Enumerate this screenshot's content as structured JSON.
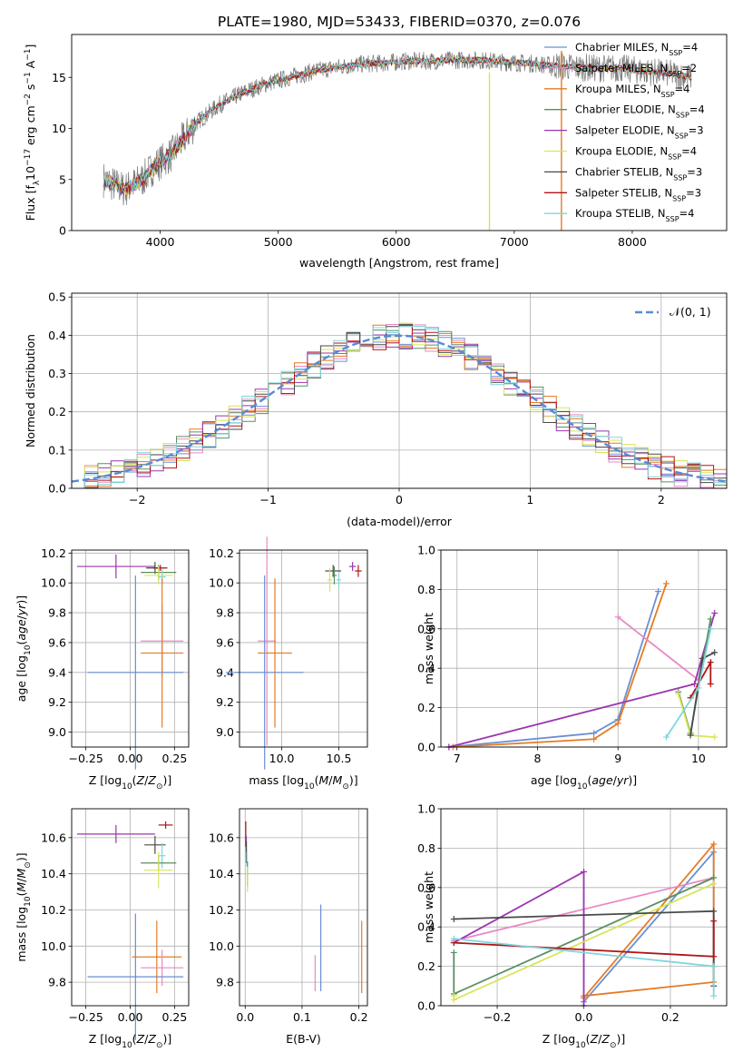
{
  "figure": {
    "suptitle": "PLATE=1980, MJD=53433, FIBERID=0370, z=0.076"
  },
  "series_colors": {
    "Chabrier MILES": "#6a8fd4",
    "Salpeter MILES": "#e78ac3",
    "Kroupa MILES": "#e57b25",
    "Chabrier ELODIE": "#5b8f5f",
    "Salpeter ELODIE": "#9b35b0",
    "Kroupa ELODIE": "#d9e45a",
    "Chabrier STELIB": "#4a4a4a",
    "Salpeter STELIB": "#b01515",
    "Kroupa STELIB": "#7fd6de"
  },
  "chart_data": [
    {
      "id": "spectrum",
      "type": "line",
      "xlabel": "wavelength [Angstrom, rest frame]",
      "ylabel": "Flux [f_λ10^-17 erg cm^-2 s^-1 A^-1]",
      "xlim": [
        3250,
        8800
      ],
      "ylim": [
        0,
        19.2
      ],
      "xticks": [
        "4000",
        "5000",
        "6000",
        "7000",
        "8000"
      ],
      "yticks": [
        "0",
        "5",
        "10",
        "15"
      ],
      "grid": false,
      "legend_position": "right",
      "legend": [
        {
          "series": "Chabrier MILES",
          "pre": "Chabrier MILES, N",
          "sub": "SSP",
          "post": "=4"
        },
        {
          "series": "Salpeter MILES",
          "pre": "Salpeter MILES, N",
          "sub": "SSP",
          "post": "=2"
        },
        {
          "series": "Kroupa MILES",
          "pre": "Kroupa MILES, N",
          "sub": "SSP",
          "post": "=4"
        },
        {
          "series": "Chabrier ELODIE",
          "pre": "Chabrier ELODIE, N",
          "sub": "SSP",
          "post": "=4"
        },
        {
          "series": "Salpeter ELODIE",
          "pre": "Salpeter ELODIE, N",
          "sub": "SSP",
          "post": "=3"
        },
        {
          "series": "Kroupa ELODIE",
          "pre": "Kroupa ELODIE, N",
          "sub": "SSP",
          "post": "=4"
        },
        {
          "series": "Chabrier STELIB",
          "pre": "Chabrier STELIB, N",
          "sub": "SSP",
          "post": "=3"
        },
        {
          "series": "Salpeter STELIB",
          "pre": "Salpeter STELIB, N",
          "sub": "SSP",
          "post": "=3"
        },
        {
          "series": "Kroupa STELIB",
          "pre": "Kroupa STELIB, N",
          "sub": "SSP",
          "post": "=4"
        }
      ],
      "continuum": {
        "x": [
          3520,
          3700,
          3850,
          3950,
          4100,
          4300,
          4500,
          4700,
          4900,
          5100,
          5300,
          5500,
          5700,
          5900,
          6100,
          6300,
          6500,
          6700,
          6900,
          7100,
          7300,
          7500,
          7700,
          7900,
          8100,
          8300,
          8500
        ],
        "y": [
          5.0,
          4.0,
          5.0,
          6.3,
          7.5,
          10.5,
          12.3,
          13.5,
          14.4,
          15.0,
          15.6,
          16.0,
          16.3,
          16.4,
          16.6,
          16.6,
          16.7,
          16.7,
          16.5,
          16.4,
          16.2,
          16.0,
          15.9,
          15.9,
          15.6,
          15.4,
          15.0
        ]
      }
    },
    {
      "id": "residuals",
      "type": "histogram",
      "xlabel": "(data-model)/error",
      "ylabel": "Normed distribution",
      "xlim": [
        -2.5,
        2.5
      ],
      "ylim": [
        0,
        0.51
      ],
      "xticks": [
        "−2",
        "−1",
        "0",
        "1",
        "2"
      ],
      "yticks": [
        "0.0",
        "0.1",
        "0.2",
        "0.3",
        "0.4",
        "0.5"
      ],
      "grid": true,
      "legend_label": "𝒩(0, 1)",
      "reference_curve": "standard normal N(0,1)",
      "bin_width": 0.1
    },
    {
      "id": "age_vs_Z",
      "type": "scatter",
      "xlabel": "Z [log10(Z/Z⊙)]",
      "ylabel": "age  [log10(age/yr)]",
      "xlim": [
        -0.33,
        0.33
      ],
      "ylim": [
        8.9,
        10.22
      ],
      "xticks": [
        "−0.25",
        "0.00",
        "0.25"
      ],
      "yticks": [
        "9.0",
        "9.2",
        "9.4",
        "9.6",
        "9.8",
        "10.0",
        "10.2"
      ],
      "grid": true,
      "points": [
        {
          "series": "Salpeter ELODIE",
          "x": -0.08,
          "y": 10.11,
          "xerr": 0.22,
          "yerr": 0.08
        },
        {
          "series": "Chabrier STELIB",
          "x": 0.14,
          "y": 10.1,
          "xerr": 0.05,
          "yerr": 0.04
        },
        {
          "series": "Salpeter STELIB",
          "x": 0.17,
          "y": 10.1,
          "xerr": 0.04,
          "yerr": 0.02
        },
        {
          "series": "Chabrier ELODIE",
          "x": 0.16,
          "y": 10.07,
          "xerr": 0.1,
          "yerr": 0.05
        },
        {
          "series": "Kroupa ELODIE",
          "x": 0.16,
          "y": 10.05,
          "xerr": 0.08,
          "yerr": 0.06
        },
        {
          "series": "Kroupa STELIB",
          "x": 0.18,
          "y": 10.04,
          "xerr": 0.02,
          "yerr": 0.06
        },
        {
          "series": "Salpeter MILES",
          "x": 0.18,
          "y": 9.61,
          "xerr": 0.12,
          "yerr": 0.24
        },
        {
          "series": "Kroupa MILES",
          "x": 0.18,
          "y": 9.53,
          "xerr": 0.12,
          "yerr": 0.5
        },
        {
          "series": "Chabrier MILES",
          "x": 0.03,
          "y": 9.4,
          "xerr": 0.27,
          "yerr": 0.65
        }
      ]
    },
    {
      "id": "age_vs_mass",
      "type": "scatter",
      "xlabel": "mass [log10(M/M⊙)]",
      "ylabel": "",
      "xlim": [
        9.63,
        10.75
      ],
      "ylim": [
        8.9,
        10.22
      ],
      "xticks": [
        "10.0",
        "10.5"
      ],
      "yticks": [
        "9.0",
        "9.2",
        "9.4",
        "9.6",
        "9.8",
        "10.0",
        "10.2"
      ],
      "grid": true,
      "points": [
        {
          "series": "Salpeter ELODIE",
          "x": 10.62,
          "y": 10.11,
          "xerr": 0.03,
          "yerr": 0.03
        },
        {
          "series": "Chabrier STELIB",
          "x": 10.45,
          "y": 10.08,
          "xerr": 0.07,
          "yerr": 0.04
        },
        {
          "series": "Salpeter STELIB",
          "x": 10.67,
          "y": 10.08,
          "xerr": 0.03,
          "yerr": 0.04
        },
        {
          "series": "Chabrier ELODIE",
          "x": 10.46,
          "y": 10.05,
          "xerr": 0.02,
          "yerr": 0.06
        },
        {
          "series": "Kroupa ELODIE",
          "x": 10.42,
          "y": 10.02,
          "xerr": 0.02,
          "yerr": 0.08
        },
        {
          "series": "Kroupa STELIB",
          "x": 10.5,
          "y": 10.02,
          "xerr": 0.02,
          "yerr": 0.05
        },
        {
          "series": "Salpeter MILES",
          "x": 9.87,
          "y": 9.61,
          "xerr": 0.08,
          "yerr": 0.7
        },
        {
          "series": "Kroupa MILES",
          "x": 9.94,
          "y": 9.53,
          "xerr": 0.15,
          "yerr": 0.5
        },
        {
          "series": "Chabrier MILES",
          "x": 9.85,
          "y": 9.4,
          "xerr": 0.34,
          "yerr": 0.65
        }
      ]
    },
    {
      "id": "massweight_vs_age",
      "type": "line",
      "xlabel": "age  [log10(age/yr)]",
      "ylabel": "mass weight",
      "xlim": [
        6.8,
        10.35
      ],
      "ylim": [
        0,
        1.0
      ],
      "xticks": [
        "7",
        "8",
        "9",
        "10"
      ],
      "yticks": [
        "0.0",
        "0.2",
        "0.4",
        "0.6",
        "0.8",
        "1.0"
      ],
      "grid": true,
      "series": [
        {
          "name": "Chabrier MILES",
          "x": [
            6.9,
            8.7,
            9.0,
            9.5
          ],
          "y": [
            0.0,
            0.07,
            0.14,
            0.79
          ]
        },
        {
          "name": "Kroupa MILES",
          "x": [
            6.95,
            8.7,
            9.0,
            9.6
          ],
          "y": [
            0.0,
            0.04,
            0.12,
            0.83
          ]
        },
        {
          "name": "Salpeter MILES",
          "x": [
            9.0,
            10.0
          ],
          "y": [
            0.66,
            0.34
          ]
        },
        {
          "name": "Salpeter ELODIE",
          "x": [
            6.9,
            9.95,
            10.2
          ],
          "y": [
            0.0,
            0.32,
            0.68
          ]
        },
        {
          "name": "Chabrier ELODIE",
          "x": [
            9.75,
            9.9,
            10.15
          ],
          "y": [
            0.28,
            0.07,
            0.65
          ]
        },
        {
          "name": "Kroupa ELODIE",
          "x": [
            9.75,
            9.9,
            10.2
          ],
          "y": [
            0.27,
            0.06,
            0.05
          ]
        },
        {
          "name": "Chabrier STELIB",
          "x": [
            9.9,
            10.05,
            10.2
          ],
          "y": [
            0.06,
            0.45,
            0.48
          ]
        },
        {
          "name": "Salpeter STELIB",
          "x": [
            9.9,
            10.15,
            10.15
          ],
          "y": [
            0.25,
            0.43,
            0.32
          ]
        },
        {
          "name": "Kroupa STELIB",
          "x": [
            9.6,
            10.0,
            10.15
          ],
          "y": [
            0.05,
            0.3,
            0.6
          ]
        }
      ]
    },
    {
      "id": "mass_vs_Z",
      "type": "scatter",
      "xlabel": "Z [log10(Z/Z⊙)]",
      "ylabel": "mass [log10(M/M⊙)]",
      "xlim": [
        -0.33,
        0.33
      ],
      "ylim": [
        9.67,
        10.76
      ],
      "xticks": [
        "−0.25",
        "0.00",
        "0.25"
      ],
      "yticks": [
        "9.8",
        "10.0",
        "10.2",
        "10.4",
        "10.6"
      ],
      "grid": true,
      "points": [
        {
          "series": "Salpeter STELIB",
          "x": 0.2,
          "y": 10.67,
          "xerr": 0.04,
          "yerr": 0.02
        },
        {
          "series": "Salpeter ELODIE",
          "x": -0.08,
          "y": 10.62,
          "xerr": 0.22,
          "yerr": 0.05
        },
        {
          "series": "Chabrier STELIB",
          "x": 0.14,
          "y": 10.56,
          "xerr": 0.06,
          "yerr": 0.05
        },
        {
          "series": "Kroupa STELIB",
          "x": 0.18,
          "y": 10.5,
          "xerr": 0.02,
          "yerr": 0.07
        },
        {
          "series": "Chabrier ELODIE",
          "x": 0.16,
          "y": 10.46,
          "xerr": 0.1,
          "yerr": 0.04
        },
        {
          "series": "Kroupa ELODIE",
          "x": 0.16,
          "y": 10.42,
          "xerr": 0.08,
          "yerr": 0.1
        },
        {
          "series": "Kroupa MILES",
          "x": 0.15,
          "y": 9.94,
          "xerr": 0.14,
          "yerr": 0.2
        },
        {
          "series": "Salpeter MILES",
          "x": 0.18,
          "y": 9.88,
          "xerr": 0.12,
          "yerr": 0.1
        },
        {
          "series": "Chabrier MILES",
          "x": 0.03,
          "y": 9.83,
          "xerr": 0.27,
          "yerr": 0.35
        }
      ]
    },
    {
      "id": "mass_vs_ebv",
      "type": "scatter",
      "xlabel": "E(B-V)",
      "ylabel": "",
      "xlim": [
        -0.01,
        0.215
      ],
      "ylim": [
        9.67,
        10.76
      ],
      "xticks": [
        "0.0",
        "0.1",
        "0.2"
      ],
      "yticks": [
        "9.8",
        "10.0",
        "10.2",
        "10.4",
        "10.6"
      ],
      "grid": true,
      "points": [
        {
          "series": "Salpeter STELIB",
          "x": 0.001,
          "y": 10.62,
          "xerr": 0,
          "yerr": 0.07
        },
        {
          "series": "Salpeter ELODIE",
          "x": 0.002,
          "y": 10.55,
          "xerr": 0,
          "yerr": 0.06
        },
        {
          "series": "Chabrier STELIB",
          "x": 0.002,
          "y": 10.52,
          "xerr": 0,
          "yerr": 0.06
        },
        {
          "series": "Kroupa STELIB",
          "x": 0.003,
          "y": 10.48,
          "xerr": 0,
          "yerr": 0.04
        },
        {
          "series": "Chabrier ELODIE",
          "x": 0.004,
          "y": 10.4,
          "xerr": 0,
          "yerr": 0.07
        },
        {
          "series": "Kroupa ELODIE",
          "x": 0.004,
          "y": 10.37,
          "xerr": 0,
          "yerr": 0.07
        },
        {
          "series": "Chabrier MILES",
          "x": 0.133,
          "y": 9.99,
          "xerr": 0,
          "yerr": 0.24
        },
        {
          "series": "Salpeter MILES",
          "x": 0.123,
          "y": 9.85,
          "xerr": 0,
          "yerr": 0.1
        },
        {
          "series": "Kroupa MILES",
          "x": 0.205,
          "y": 9.94,
          "xerr": 0,
          "yerr": 0.2
        }
      ]
    },
    {
      "id": "massweight_vs_Z",
      "type": "line",
      "xlabel": "Z [log10(Z/Z⊙)]",
      "ylabel": "mass weight",
      "xlim": [
        -0.33,
        0.33
      ],
      "ylim": [
        0,
        1.0
      ],
      "xticks": [
        "−0.2",
        "0.0",
        "0.2"
      ],
      "yticks": [
        "0.0",
        "0.2",
        "0.4",
        "0.6",
        "0.8",
        "1.0"
      ],
      "grid": true,
      "series": [
        {
          "name": "Chabrier MILES",
          "x": [
            0.0,
            0.3,
            0.3
          ],
          "y": [
            0.02,
            0.78,
            0.2
          ]
        },
        {
          "name": "Kroupa MILES",
          "x": [
            0.0,
            0.3,
            0.3,
            0.0
          ],
          "y": [
            0.04,
            0.82,
            0.12,
            0.05
          ]
        },
        {
          "name": "Salpeter MILES",
          "x": [
            -0.3,
            0.3
          ],
          "y": [
            0.33,
            0.65
          ]
        },
        {
          "name": "Salpeter ELODIE",
          "x": [
            -0.3,
            0.0,
            0.0
          ],
          "y": [
            0.32,
            0.68,
            0.0
          ]
        },
        {
          "name": "Chabrier ELODIE",
          "x": [
            -0.3,
            -0.3,
            0.3
          ],
          "y": [
            0.27,
            0.06,
            0.65
          ]
        },
        {
          "name": "Kroupa ELODIE",
          "x": [
            -0.3,
            -0.3,
            0.3
          ],
          "y": [
            0.05,
            0.03,
            0.62
          ]
        },
        {
          "name": "Chabrier STELIB",
          "x": [
            -0.3,
            0.3,
            0.3
          ],
          "y": [
            0.44,
            0.48,
            0.1
          ]
        },
        {
          "name": "Salpeter STELIB",
          "x": [
            -0.3,
            0.3,
            0.3
          ],
          "y": [
            0.32,
            0.25,
            0.43
          ]
        },
        {
          "name": "Kroupa STELIB",
          "x": [
            -0.3,
            0.3,
            0.3
          ],
          "y": [
            0.34,
            0.2,
            0.05
          ]
        }
      ]
    }
  ]
}
